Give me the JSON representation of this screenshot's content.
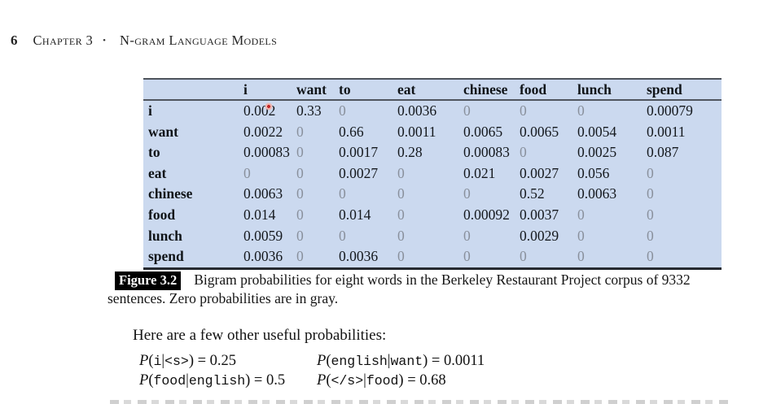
{
  "page": {
    "page_number": "6",
    "chapter": "Chapter 3",
    "bullet": "•",
    "chapter_title": "N-gram Language Models"
  },
  "table": {
    "bg_color": "#cbd9ef",
    "zero_color": "#89909c",
    "columns": [
      "",
      "i",
      "want",
      "to",
      "eat",
      "chinese",
      "food",
      "lunch",
      "spend"
    ],
    "rows": [
      {
        "label": "i",
        "values": [
          "0.002",
          "0.33",
          "0",
          "0.0036",
          "0",
          "0",
          "0",
          "0.00079"
        ]
      },
      {
        "label": "want",
        "values": [
          "0.0022",
          "0",
          "0.66",
          "0.0011",
          "0.0065",
          "0.0065",
          "0.0054",
          "0.0011"
        ]
      },
      {
        "label": "to",
        "values": [
          "0.00083",
          "0",
          "0.0017",
          "0.28",
          "0.00083",
          "0",
          "0.0025",
          "0.087"
        ]
      },
      {
        "label": "eat",
        "values": [
          "0",
          "0",
          "0.0027",
          "0",
          "0.021",
          "0.0027",
          "0.056",
          "0"
        ]
      },
      {
        "label": "chinese",
        "values": [
          "0.0063",
          "0",
          "0",
          "0",
          "0",
          "0.52",
          "0.0063",
          "0"
        ]
      },
      {
        "label": "food",
        "values": [
          "0.014",
          "0",
          "0.014",
          "0",
          "0.00092",
          "0.0037",
          "0",
          "0"
        ]
      },
      {
        "label": "lunch",
        "values": [
          "0.0059",
          "0",
          "0",
          "0",
          "0",
          "0.0029",
          "0",
          "0"
        ]
      },
      {
        "label": "spend",
        "values": [
          "0.0036",
          "0",
          "0.0036",
          "0",
          "0",
          "0",
          "0",
          "0"
        ]
      }
    ],
    "annotation": {
      "type": "red-dot",
      "near_cell_row": "i",
      "near_cell_col": "i",
      "color": "#c3282a"
    }
  },
  "figure": {
    "label": "Figure 3.2",
    "caption": "Bigram probabilities for eight words in the Berkeley Restaurant  Project corpus of 9332 sentences. Zero probabilities are in gray."
  },
  "body": {
    "intro": "Here are a few other useful probabilities:"
  },
  "formulas": [
    {
      "segments": [
        {
          "t": "it",
          "s": "P"
        },
        {
          "t": "rm",
          "s": "("
        },
        {
          "t": "tt",
          "s": "i"
        },
        {
          "t": "rm",
          "s": "|"
        },
        {
          "t": "tt",
          "s": "<s>"
        },
        {
          "t": "rm",
          "s": ") = 0.25"
        }
      ]
    },
    {
      "segments": [
        {
          "t": "it",
          "s": "P"
        },
        {
          "t": "rm",
          "s": "("
        },
        {
          "t": "tt",
          "s": "english"
        },
        {
          "t": "rm",
          "s": "|"
        },
        {
          "t": "tt",
          "s": "want"
        },
        {
          "t": "rm",
          "s": ") = 0.0011"
        }
      ]
    },
    {
      "segments": [
        {
          "t": "it",
          "s": "P"
        },
        {
          "t": "rm",
          "s": "("
        },
        {
          "t": "tt",
          "s": "food"
        },
        {
          "t": "rm",
          "s": "|"
        },
        {
          "t": "tt",
          "s": "english"
        },
        {
          "t": "rm",
          "s": ") = 0.5"
        }
      ]
    },
    {
      "segments": [
        {
          "t": "it",
          "s": "P"
        },
        {
          "t": "rm",
          "s": "("
        },
        {
          "t": "tt",
          "s": "</s>"
        },
        {
          "t": "rm",
          "s": "|"
        },
        {
          "t": "tt",
          "s": "food"
        },
        {
          "t": "rm",
          "s": ") = 0.68"
        }
      ]
    }
  ]
}
